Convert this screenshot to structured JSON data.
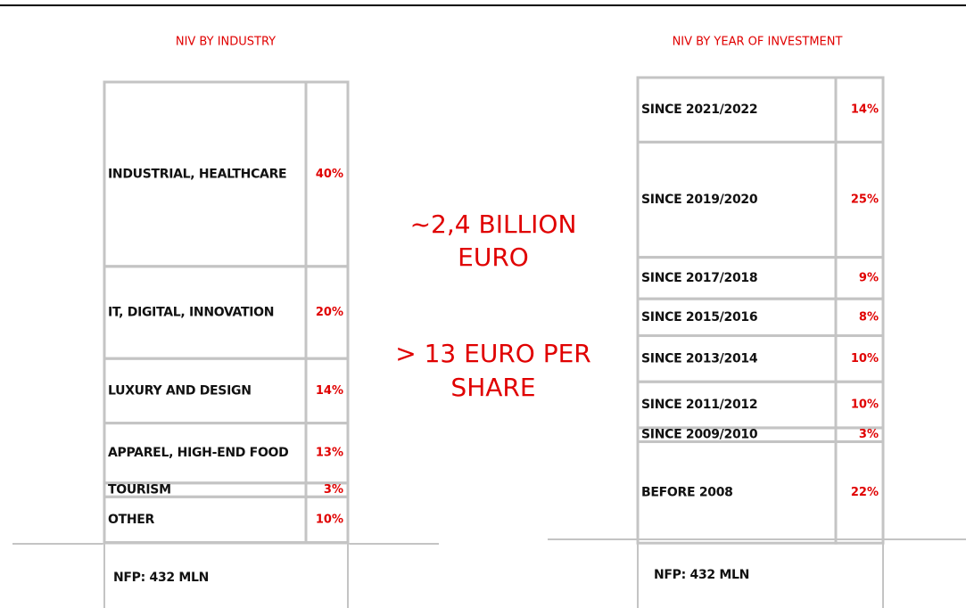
{
  "chart_data": [
    {
      "type": "stacked_table",
      "title": "NIV BY INDUSTRY",
      "categories": [
        "INDUSTRIAL, HEALTHCARE",
        "IT, DIGITAL, INNOVATION",
        "LUXURY AND DESIGN",
        "APPAREL, HIGH-END FOOD",
        "TOURISM",
        "OTHER"
      ],
      "values": [
        40,
        20,
        14,
        13,
        3,
        10
      ],
      "value_labels": [
        "40%",
        "20%",
        "14%",
        "13%",
        "3%",
        "10%"
      ],
      "color": "#e00000"
    },
    {
      "type": "stacked_table",
      "title": "NIV BY YEAR OF INVESTMENT",
      "categories": [
        "SINCE 2021/2022",
        "SINCE 2019/2020",
        "SINCE 2017/2018",
        "SINCE 2015/2016",
        "SINCE 2013/2014",
        "SINCE 2011/2012",
        "SINCE 2009/2010",
        "BEFORE 2008"
      ],
      "values": [
        14,
        25,
        9,
        8,
        10,
        10,
        3,
        22
      ],
      "value_labels": [
        "14%",
        "25%",
        "9%",
        "8%",
        "10%",
        "10%",
        "3%",
        "22%"
      ],
      "color": "#e00000"
    }
  ],
  "headline": [
    [
      "~2,4 BILLION",
      "EURO"
    ],
    [
      "> 13 EURO PER",
      "SHARE"
    ]
  ],
  "nfp": [
    "NFP: 432 MLN",
    "NFP: 432 MLN"
  ]
}
